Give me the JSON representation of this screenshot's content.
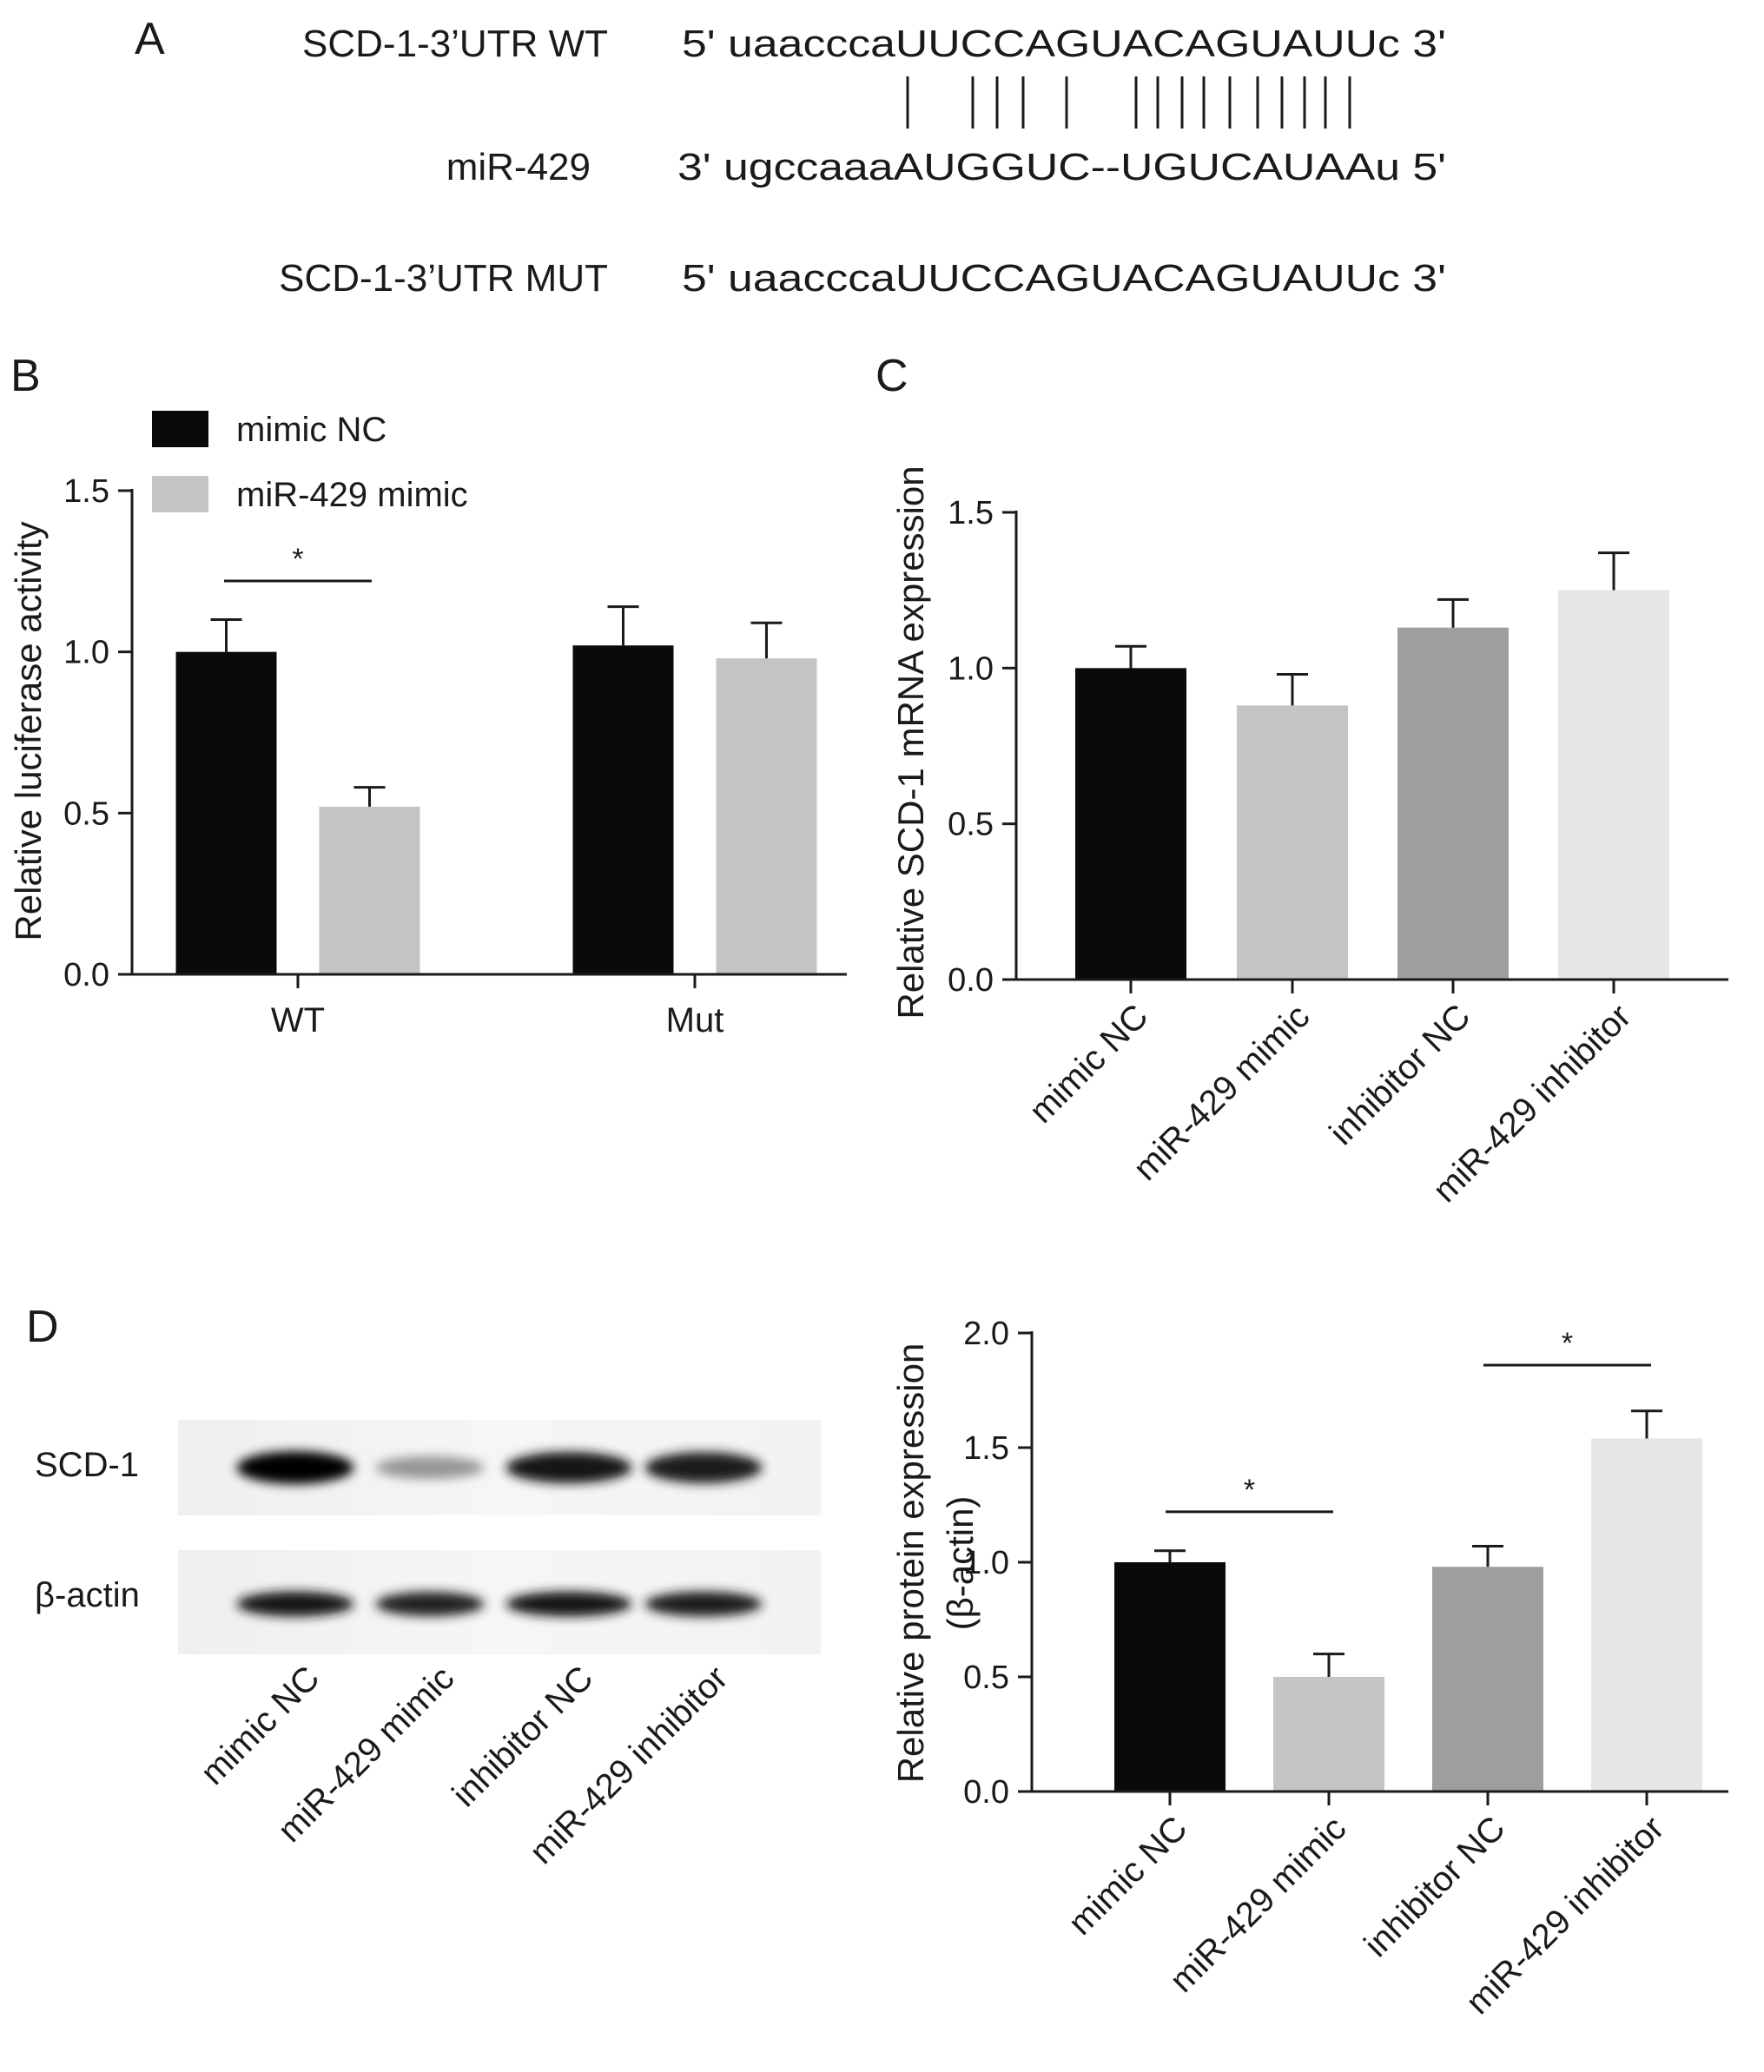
{
  "panels": {
    "A": {
      "letter": "A",
      "rows": [
        {
          "label": "SCD-1-3’UTR WT",
          "sequence": "5' uaacccaUUCCAGUACAGUAUUc 3'"
        },
        {
          "label": "miR-429",
          "sequence": "3' ugccaaaAUGGUC--UGUCAUAAu 5'"
        },
        {
          "label": "SCD-1-3’UTR MUT",
          "sequence": "5' uaacccaUUCCAGUACAGUAUUc 3'"
        }
      ]
    },
    "D": {
      "letter": "D",
      "blot": {
        "row_labels": [
          "SCD-1",
          "β-actin"
        ],
        "lane_labels": [
          "mimic NC",
          "miR-429 mimic",
          "inhibitor NC",
          "miR-429 inhibitor"
        ],
        "scd1_intensity": [
          1.0,
          0.35,
          0.9,
          0.88
        ],
        "actin_intensity": [
          0.9,
          0.85,
          0.9,
          0.88
        ]
      }
    }
  },
  "colors": {
    "black": "#0a0a0a",
    "light_gray": "#c4c4c4",
    "mid_gray": "#9e9e9e",
    "pale_gray": "#e6e6e6"
  },
  "chart_data": [
    {
      "id": "B",
      "letter": "B",
      "type": "bar",
      "categories": [
        "WT",
        "Mut"
      ],
      "series": [
        {
          "name": "mimic NC",
          "values": [
            1.0,
            1.02
          ],
          "errors": [
            0.1,
            0.12
          ],
          "color": "#0a0a0a"
        },
        {
          "name": "miR-429 mimic",
          "values": [
            0.52,
            0.98
          ],
          "errors": [
            0.06,
            0.11
          ],
          "color": "#c4c4c4"
        }
      ],
      "ylabel": "Relative luciferase activity",
      "xlabel": "",
      "ylim": [
        0,
        1.5
      ],
      "yticks": [
        "0.0",
        "0.5",
        "1.0",
        "1.5"
      ],
      "legend": "top-left",
      "significance": [
        {
          "category": "WT",
          "label": "*"
        }
      ]
    },
    {
      "id": "C",
      "letter": "C",
      "type": "bar",
      "categories": [
        "mimic NC",
        "miR-429 mimic",
        "inhibitor NC",
        "miR-429 inhibitor"
      ],
      "values": [
        1.0,
        0.88,
        1.13,
        1.25
      ],
      "errors": [
        0.07,
        0.1,
        0.09,
        0.12
      ],
      "colors": [
        "#0a0a0a",
        "#c4c4c4",
        "#9e9e9e",
        "#e6e6e6"
      ],
      "ylabel": "Relative SCD-1 mRNA expression",
      "xlabel": "",
      "ylim": [
        0,
        1.5
      ],
      "yticks": [
        "0.0",
        "0.5",
        "1.0",
        "1.5"
      ]
    },
    {
      "id": "D",
      "type": "bar",
      "categories": [
        "mimic NC",
        "miR-429 mimic",
        "inhibitor NC",
        "miR-429 inhibitor"
      ],
      "values": [
        1.0,
        0.5,
        0.98,
        1.54
      ],
      "errors": [
        0.05,
        0.1,
        0.09,
        0.12
      ],
      "colors": [
        "#0a0a0a",
        "#c4c4c4",
        "#9e9e9e",
        "#e6e6e6"
      ],
      "ylabel_lines": [
        "Relative protein expression",
        "(β-actin)"
      ],
      "xlabel": "",
      "ylim": [
        0,
        2.0
      ],
      "yticks": [
        "0.0",
        "0.5",
        "1.0",
        "1.5",
        "2.0"
      ],
      "significance": [
        {
          "from": 0,
          "to": 1,
          "label": "*"
        },
        {
          "from": 2,
          "to": 3,
          "label": "*"
        }
      ]
    }
  ]
}
